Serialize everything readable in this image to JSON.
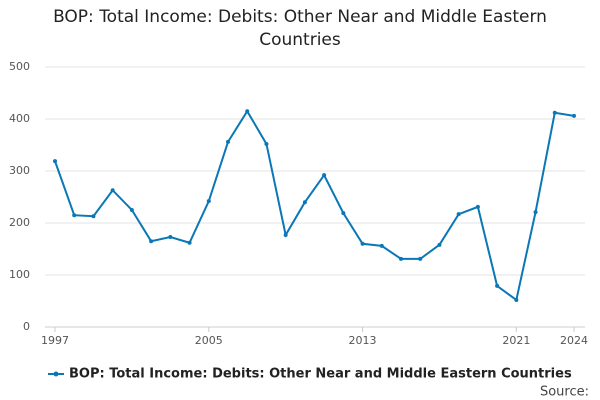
{
  "chart_data": {
    "type": "line",
    "title": "BOP: Total Income: Debits: Other Near and Middle Eastern Countries",
    "x": [
      1997,
      1998,
      1999,
      2000,
      2001,
      2002,
      2003,
      2004,
      2005,
      2006,
      2007,
      2008,
      2009,
      2010,
      2011,
      2012,
      2013,
      2014,
      2015,
      2016,
      2017,
      2018,
      2019,
      2020,
      2021,
      2022,
      2023,
      2024
    ],
    "series": [
      {
        "name": "BOP: Total Income: Debits: Other Near and Middle Eastern Countries",
        "color": "#0a77b6",
        "values": [
          319,
          215,
          213,
          263,
          225,
          165,
          173,
          162,
          242,
          356,
          415,
          352,
          177,
          240,
          292,
          219,
          160,
          156,
          131,
          131,
          158,
          217,
          231,
          79,
          52,
          221,
          412,
          406
        ]
      }
    ],
    "xlim": [
      1997,
      2024
    ],
    "xticks": [
      1997,
      2005,
      2013,
      2021,
      2024
    ],
    "ylim": [
      0,
      500
    ],
    "yticks": [
      0,
      100,
      200,
      300,
      400,
      500
    ],
    "grid": true,
    "legend": "bottom",
    "source": "Source:"
  }
}
